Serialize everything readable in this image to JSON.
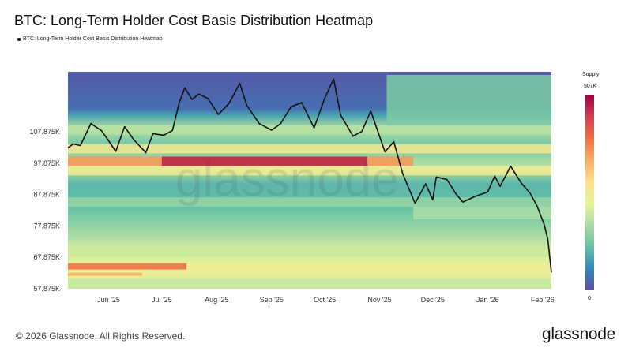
{
  "title": "BTC: Long-Term Holder Cost Basis Distribution Heatmap",
  "legend_label": "BTC: Long-Term Holder Cost Basis Distribution Heatmap",
  "watermark": "glassnode",
  "footer": {
    "copyright": "© 2026 Glassnode. All Rights Reserved.",
    "brand": "glassnode"
  },
  "colorbar": {
    "title": "Supply",
    "max_label": "507K",
    "min_label": "0"
  },
  "chart_data": {
    "type": "heatmap",
    "title": "BTC: Long-Term Holder Cost Basis Distribution Heatmap",
    "xlabel": "",
    "ylabel": "",
    "x_range": [
      "2025-05-09",
      "2026-02-06"
    ],
    "ylim": [
      57875,
      127000
    ],
    "x_ticks": [
      {
        "label": "Jun '25",
        "date": "2025-06-01"
      },
      {
        "label": "Jul '25",
        "date": "2025-07-01"
      },
      {
        "label": "Aug '25",
        "date": "2025-08-01"
      },
      {
        "label": "Sep '25",
        "date": "2025-09-01"
      },
      {
        "label": "Oct '25",
        "date": "2025-10-01"
      },
      {
        "label": "Nov '25",
        "date": "2025-11-01"
      },
      {
        "label": "Dec '25",
        "date": "2025-12-01"
      },
      {
        "label": "Jan '26",
        "date": "2026-01-01"
      },
      {
        "label": "Feb '26",
        "date": "2026-02-01"
      }
    ],
    "y_ticks": [
      {
        "label": "57.875K",
        "value": 57875
      },
      {
        "label": "67.875K",
        "value": 67875
      },
      {
        "label": "77.875K",
        "value": 77875
      },
      {
        "label": "87.875K",
        "value": 87875
      },
      {
        "label": "97.875K",
        "value": 97875
      },
      {
        "label": "107.875K",
        "value": 107875
      }
    ],
    "colorscale": [
      "#5e4fa2",
      "#3288bd",
      "#66c2a5",
      "#abdda4",
      "#e6f598",
      "#fee08b",
      "#fdae61",
      "#f46d43",
      "#d53e4f",
      "#9e0142"
    ],
    "supply_range": [
      0,
      507000
    ],
    "bands": [
      {
        "from": "2025-05-09",
        "to": "2026-02-06",
        "y0": 107000,
        "y1": 110000,
        "supply": 180000
      },
      {
        "from": "2025-11-05",
        "to": "2026-02-06",
        "y0": 110000,
        "y1": 126000,
        "supply": 130000
      },
      {
        "from": "2025-05-09",
        "to": "2026-02-06",
        "y0": 101000,
        "y1": 104000,
        "supply": 260000
      },
      {
        "from": "2025-05-09",
        "to": "2025-11-20",
        "y0": 97000,
        "y1": 100000,
        "supply": 360000
      },
      {
        "from": "2025-07-01",
        "to": "2025-10-25",
        "y0": 97000,
        "y1": 100000,
        "supply": 480000
      },
      {
        "from": "2025-05-09",
        "to": "2026-02-06",
        "y0": 94000,
        "y1": 97000,
        "supply": 250000
      },
      {
        "from": "2025-05-09",
        "to": "2026-02-06",
        "y0": 84000,
        "y1": 87000,
        "supply": 150000
      },
      {
        "from": "2025-11-20",
        "to": "2026-02-06",
        "y0": 80000,
        "y1": 84000,
        "supply": 170000
      },
      {
        "from": "2025-05-09",
        "to": "2026-02-06",
        "y0": 68000,
        "y1": 72000,
        "supply": 200000
      },
      {
        "from": "2025-05-09",
        "to": "2026-02-06",
        "y0": 64000,
        "y1": 66000,
        "supply": 250000
      },
      {
        "from": "2025-05-09",
        "to": "2025-07-15",
        "y0": 64000,
        "y1": 66000,
        "supply": 400000
      },
      {
        "from": "2025-05-09",
        "to": "2025-06-20",
        "y0": 62000,
        "y1": 63000,
        "supply": 340000
      },
      {
        "from": "2025-05-09",
        "to": "2026-02-06",
        "y0": 58000,
        "y1": 61000,
        "supply": 190000
      }
    ],
    "price_series": [
      [
        "2025-05-09",
        102800
      ],
      [
        "2025-05-12",
        104000
      ],
      [
        "2025-05-16",
        103500
      ],
      [
        "2025-05-22",
        110500
      ],
      [
        "2025-05-28",
        108200
      ],
      [
        "2025-06-01",
        105000
      ],
      [
        "2025-06-05",
        101600
      ],
      [
        "2025-06-10",
        109500
      ],
      [
        "2025-06-15",
        105500
      ],
      [
        "2025-06-22",
        101200
      ],
      [
        "2025-06-26",
        107300
      ],
      [
        "2025-07-02",
        106800
      ],
      [
        "2025-07-07",
        108300
      ],
      [
        "2025-07-11",
        117500
      ],
      [
        "2025-07-14",
        121900
      ],
      [
        "2025-07-18",
        118200
      ],
      [
        "2025-07-22",
        119900
      ],
      [
        "2025-07-27",
        118500
      ],
      [
        "2025-08-02",
        113400
      ],
      [
        "2025-08-08",
        117000
      ],
      [
        "2025-08-14",
        123300
      ],
      [
        "2025-08-18",
        116300
      ],
      [
        "2025-08-25",
        110500
      ],
      [
        "2025-09-01",
        108400
      ],
      [
        "2025-09-06",
        110400
      ],
      [
        "2025-09-12",
        115900
      ],
      [
        "2025-09-18",
        117200
      ],
      [
        "2025-09-25",
        109100
      ],
      [
        "2025-10-01",
        118600
      ],
      [
        "2025-10-06",
        124700
      ],
      [
        "2025-10-10",
        113200
      ],
      [
        "2025-10-17",
        106500
      ],
      [
        "2025-10-22",
        108000
      ],
      [
        "2025-10-27",
        114500
      ],
      [
        "2025-11-04",
        101500
      ],
      [
        "2025-11-09",
        104700
      ],
      [
        "2025-11-14",
        94600
      ],
      [
        "2025-11-21",
        85100
      ],
      [
        "2025-11-27",
        91300
      ],
      [
        "2025-12-01",
        86200
      ],
      [
        "2025-12-03",
        93500
      ],
      [
        "2025-12-09",
        92700
      ],
      [
        "2025-12-14",
        88200
      ],
      [
        "2025-12-18",
        85500
      ],
      [
        "2025-12-25",
        87300
      ],
      [
        "2026-01-01",
        88700
      ],
      [
        "2026-01-05",
        93800
      ],
      [
        "2026-01-08",
        90500
      ],
      [
        "2026-01-14",
        96900
      ],
      [
        "2026-01-20",
        91500
      ],
      [
        "2026-01-25",
        88300
      ],
      [
        "2026-01-29",
        84100
      ],
      [
        "2026-02-02",
        78200
      ],
      [
        "2026-02-04",
        73500
      ],
      [
        "2026-02-06",
        63000
      ]
    ]
  }
}
